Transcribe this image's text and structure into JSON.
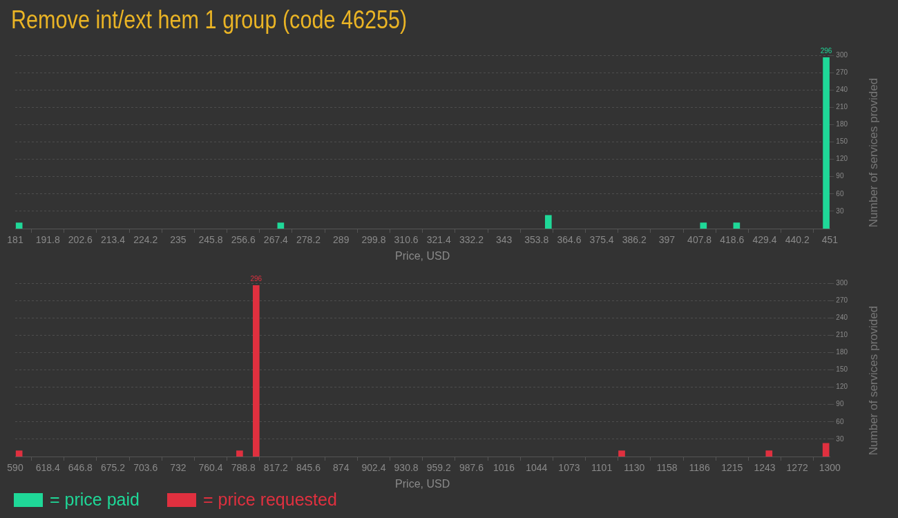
{
  "chart_data": [
    {
      "type": "bar",
      "title": "Remove int/ext hem 1 group (code 46255)",
      "xlabel": "Price, USD",
      "ylabel": "Number of services provided",
      "x": [
        182.3,
        269.0,
        357.7,
        409.1,
        420.1,
        449.8
      ],
      "series": [
        {
          "name": "= price paid",
          "color": "#1fd898",
          "values": [
            10,
            10,
            23,
            10,
            10,
            296
          ],
          "value_labels": [
            null,
            null,
            null,
            null,
            null,
            "296"
          ]
        }
      ],
      "xlim": [
        181,
        451
      ],
      "xticks": [
        181,
        191.8,
        202.6,
        213.4,
        224.2,
        235,
        245.8,
        256.6,
        267.4,
        278.2,
        289,
        299.8,
        310.6,
        321.4,
        332.2,
        343,
        353.8,
        364.6,
        375.4,
        386.2,
        397,
        407.8,
        418.6,
        429.4,
        440.2,
        451
      ],
      "ylim": [
        0,
        300
      ],
      "yticks": [
        30,
        60,
        90,
        120,
        150,
        180,
        210,
        240,
        270,
        300
      ],
      "grid": "y",
      "legend": "bottom left"
    },
    {
      "type": "bar",
      "xlabel": "Price, USD",
      "ylabel": "Number of services provided",
      "x": [
        593.4,
        785.6,
        800.0,
        1118.6,
        1247.0,
        1296.6
      ],
      "series": [
        {
          "name": "= price requested",
          "color": "#e0303f",
          "values": [
            10,
            10,
            296,
            10,
            10,
            23
          ],
          "value_labels": [
            null,
            null,
            "296",
            null,
            null,
            null
          ]
        }
      ],
      "xlim": [
        590,
        1300
      ],
      "xticks": [
        590,
        618.4,
        646.8,
        675.2,
        703.6,
        732,
        760.4,
        788.8,
        817.2,
        845.6,
        874,
        902.4,
        930.8,
        959.2,
        987.6,
        1016,
        {
          "value": 1044.4,
          "label": "1044"
        },
        {
          "value": 1072.8,
          "label": "1073"
        },
        {
          "value": 1101.2,
          "label": "1101"
        },
        {
          "value": 1129.6,
          "label": "1130"
        },
        1158,
        {
          "value": 1186.4,
          "label": "1186"
        },
        {
          "value": 1214.8,
          "label": "1215"
        },
        {
          "value": 1243.2,
          "label": "1243"
        },
        {
          "value": 1271.6,
          "label": "1272"
        },
        1300
      ],
      "ylim": [
        0,
        300
      ],
      "yticks": [
        30,
        60,
        90,
        120,
        150,
        180,
        210,
        240,
        270,
        300
      ],
      "grid": "y",
      "legend": "bottom left"
    }
  ]
}
